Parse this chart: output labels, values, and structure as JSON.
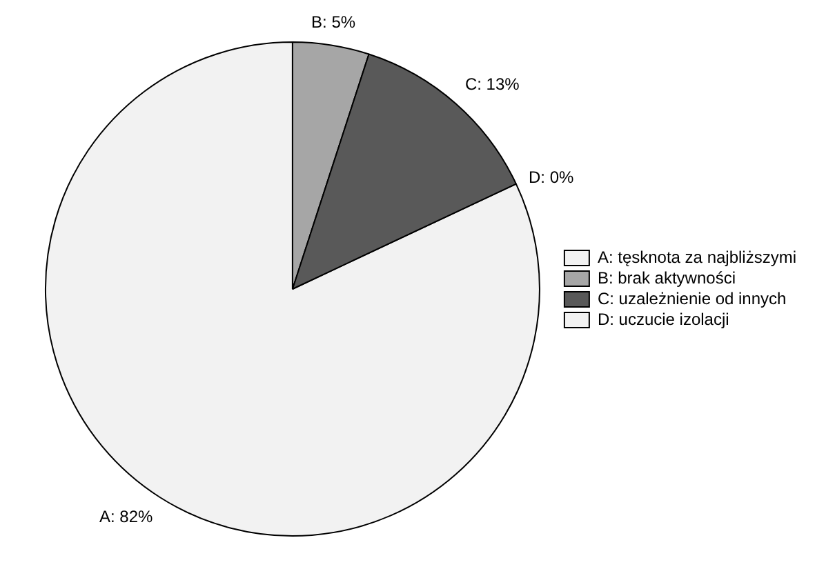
{
  "chart_data": {
    "type": "pie",
    "categories": [
      "A: tęsknota za najbliższymi",
      "B: brak aktywności",
      "C: uzależnienie od innych",
      "D: uczucie izolacji"
    ],
    "values": [
      82,
      5,
      13,
      0
    ],
    "colors": [
      "#f2f2f2",
      "#a6a6a6",
      "#595959",
      "#f2f2f2"
    ],
    "value_labels": [
      "A: 82%",
      "B: 5%",
      "C: 13%",
      "D: 0%"
    ],
    "legend": "right"
  }
}
